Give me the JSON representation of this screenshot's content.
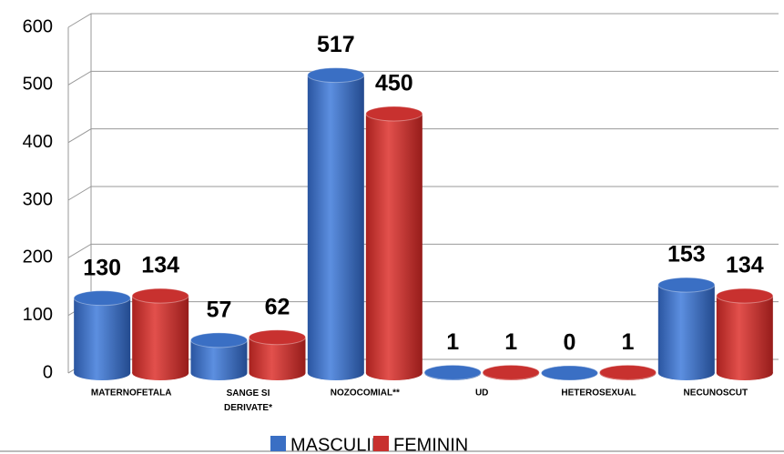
{
  "chart_data": {
    "type": "bar",
    "categories": [
      "MATERNOFETALA",
      "SANGE SI DERIVATE*",
      "NOZOCOMIAL**",
      "UD",
      "HETEROSEXUAL",
      "NECUNOSCUT"
    ],
    "series": [
      {
        "name": "MASCULIN",
        "color": "#3a6fc4",
        "values": [
          130,
          57,
          517,
          1,
          0,
          153
        ]
      },
      {
        "name": "FEMININ",
        "color": "#c8312f",
        "values": [
          134,
          62,
          450,
          1,
          1,
          134
        ]
      }
    ],
    "ylim": [
      0,
      600
    ],
    "yticks": [
      0,
      100,
      200,
      300,
      400,
      500,
      600
    ],
    "grid": true
  }
}
